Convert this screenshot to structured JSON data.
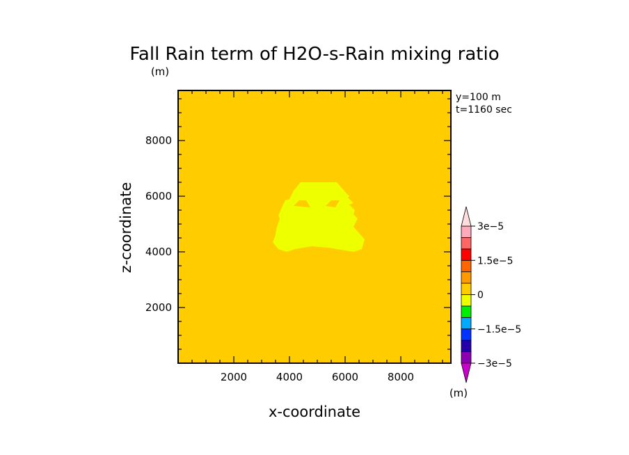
{
  "chart_data": {
    "type": "heatmap",
    "title": "Fall Rain term of H2O-s-Rain mixing ratio",
    "title_units": "(m)",
    "xlabel": "x-coordinate",
    "ylabel": "z-coordinate",
    "xlim": [
      0,
      9800
    ],
    "ylim": [
      0,
      9800
    ],
    "xticks": [
      2000,
      4000,
      6000,
      8000
    ],
    "yticks": [
      2000,
      4000,
      6000,
      8000
    ],
    "annotations": [
      "y=100 m",
      "t=1160 sec"
    ],
    "background": {
      "range": "0 to 7.5e-6",
      "color": "#ffcc00"
    },
    "region": {
      "range": "-7.5e-6 to 0",
      "color": "#eeff00",
      "x": [
        3400,
        3500,
        3500,
        3550,
        3650,
        3600,
        3750,
        3850,
        4000,
        4150,
        4400,
        5000,
        5700,
        6050,
        6150,
        6100,
        6300,
        6150,
        6350,
        6300,
        6450,
        6300,
        6700,
        6600,
        6300,
        5400,
        4800,
        4200,
        3900,
        3600,
        3400
      ],
      "z": [
        4350,
        4600,
        4650,
        4900,
        5200,
        5300,
        5650,
        5850,
        5900,
        6200,
        6500,
        6500,
        6500,
        6100,
        6000,
        5950,
        5750,
        5700,
        5500,
        5350,
        5200,
        4900,
        4450,
        4100,
        4000,
        4150,
        4200,
        4100,
        4000,
        4100,
        4350
      ]
    },
    "holes": [
      {
        "x": [
          4150,
          4350,
          4600,
          4750
        ],
        "z": [
          5650,
          5850,
          5850,
          5600
        ]
      },
      {
        "x": [
          5300,
          5500,
          5800,
          5650
        ],
        "z": [
          5650,
          5850,
          5850,
          5600
        ]
      }
    ],
    "colorbar": {
      "colors": [
        "#8c00b4",
        "#2200aa",
        "#0033ff",
        "#00aaff",
        "#00ee00",
        "#eeff00",
        "#ffcc00",
        "#ff9900",
        "#ff6600",
        "#ff0000",
        "#ff6666",
        "#ffaabb"
      ],
      "bottom_triangle_color": "#cc00cc",
      "top_triangle_color": "#ffdddd",
      "labels": [
        {
          "value": -3e-05,
          "text": "−3e−5"
        },
        {
          "value": -1.5e-05,
          "text": "−1.5e−5"
        },
        {
          "value": 0,
          "text": "0"
        },
        {
          "value": 1.5e-05,
          "text": "1.5e−5"
        },
        {
          "value": 3e-05,
          "text": "3e−5"
        }
      ],
      "units": "(m)"
    }
  }
}
